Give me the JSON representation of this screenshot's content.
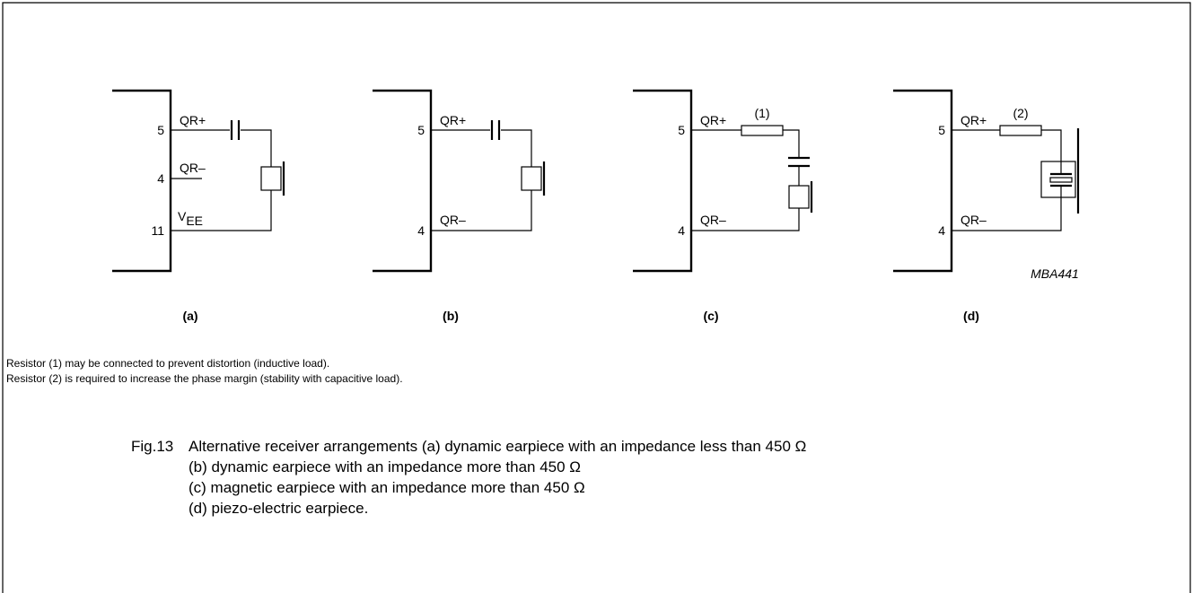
{
  "circuits": [
    {
      "label": "(a)",
      "pins": [
        {
          "number": "5",
          "name": "QR+"
        },
        {
          "number": "4",
          "name": "QR–"
        },
        {
          "number": "11",
          "name": "V",
          "name_sub": "EE"
        }
      ]
    },
    {
      "label": "(b)",
      "pins": [
        {
          "number": "5",
          "name": "QR+"
        },
        {
          "number": "4",
          "name": "QR–"
        }
      ]
    },
    {
      "label": "(c)",
      "pins": [
        {
          "number": "5",
          "name": "QR+"
        },
        {
          "number": "4",
          "name": "QR–"
        }
      ],
      "resistor_label": "(1)"
    },
    {
      "label": "(d)",
      "pins": [
        {
          "number": "5",
          "name": "QR+"
        },
        {
          "number": "4",
          "name": "QR–"
        }
      ],
      "resistor_label": "(2)"
    }
  ],
  "figure_code": "MBA441",
  "notes": [
    "Resistor (1) may be connected to prevent distortion (inductive load).",
    "Resistor (2) is required to increase the phase margin (stability with capacitive load)."
  ],
  "caption": {
    "number": "Fig.13",
    "lines": [
      "Alternative receiver arrangements (a) dynamic earpiece with an impedance less than 450 Ω",
      "(b) dynamic earpiece with an impedance more than 450 Ω",
      "(c) magnetic earpiece with an impedance more than 450 Ω",
      "(d) piezo-electric earpiece."
    ]
  }
}
